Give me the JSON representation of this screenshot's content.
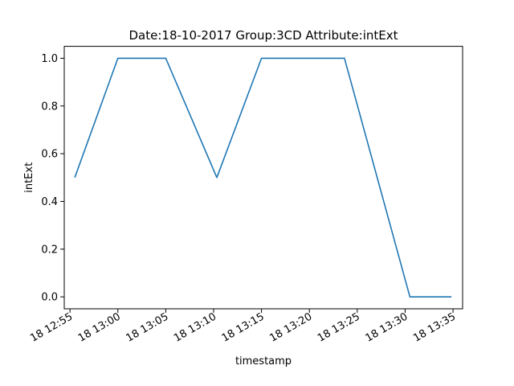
{
  "chart_data": {
    "type": "line",
    "title": "Date:18-10-2017  Group:3CD Attribute:intExt",
    "xlabel": "timestamp",
    "ylabel": "intExt",
    "x_ticks": [
      "2017-10-18 12:55",
      "2017-10-18 13:00",
      "2017-10-18 13:05",
      "2017-10-18 13:10",
      "2017-10-18 13:15",
      "2017-10-18 13:20",
      "2017-10-18 13:25",
      "2017-10-18 13:30",
      "2017-10-18 13:35"
    ],
    "x_tick_labels": [
      "18 12:55",
      "18 13:00",
      "18 13:05",
      "18 13:10",
      "18 13:15",
      "18 13:20",
      "18 13:25",
      "18 13:30",
      "18 13:35"
    ],
    "y_ticks": [
      0.0,
      0.2,
      0.4,
      0.6,
      0.8,
      1.0
    ],
    "y_tick_labels": [
      "0.0",
      "0.2",
      "0.4",
      "0.6",
      "0.8",
      "1.0"
    ],
    "ylim": [
      -0.05,
      1.05
    ],
    "xlim": [
      "2017-10-18 12:54:24",
      "2017-10-18 13:36:00"
    ],
    "grid": false,
    "color": "#1f77b4",
    "series": [
      {
        "x": [
          "2017-10-18 12:55:30",
          "2017-10-18 13:00:00",
          "2017-10-18 13:05:00",
          "2017-10-18 13:10:20",
          "2017-10-18 13:15:00",
          "2017-10-18 13:20:00",
          "2017-10-18 13:23:40",
          "2017-10-18 13:30:30",
          "2017-10-18 13:34:50"
        ],
        "values": [
          0.5,
          1.0,
          1.0,
          0.5,
          1.0,
          1.0,
          1.0,
          0.0,
          0.0
        ]
      }
    ]
  }
}
